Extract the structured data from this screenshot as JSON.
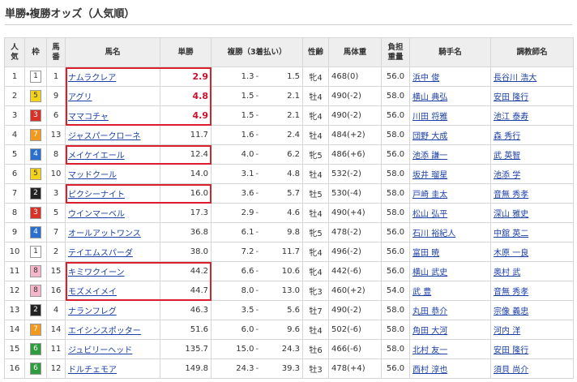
{
  "title": "単勝・複勝オッズ（人気順）",
  "table": {
    "headers": [
      "人気",
      "枠",
      "馬番",
      "馬名",
      "単勝",
      "複勝（3着払い）",
      "性齢",
      "馬体重",
      "負担重量",
      "騎手名",
      "調教師名"
    ],
    "place_separator": "-",
    "rows": [
      [
        "1",
        "1",
        "1",
        "ナムラクレア",
        "2.9",
        "1.3",
        "1.5",
        "牝4",
        "468(0)",
        "56.0",
        "浜中 俊",
        "長谷川 浩大"
      ],
      [
        "2",
        "5",
        "9",
        "アグリ",
        "4.8",
        "1.5",
        "2.1",
        "牡4",
        "490(-2)",
        "58.0",
        "横山 典弘",
        "安田 隆行"
      ],
      [
        "3",
        "3",
        "6",
        "ママコチャ",
        "4.9",
        "1.5",
        "2.1",
        "牝4",
        "490(-2)",
        "56.0",
        "川田 将雅",
        "池江 泰寿"
      ],
      [
        "4",
        "7",
        "13",
        "ジャスパークローネ",
        "11.7",
        "1.6",
        "2.4",
        "牡4",
        "484(+2)",
        "58.0",
        "団野 大成",
        "森 秀行"
      ],
      [
        "5",
        "4",
        "8",
        "メイケイエール",
        "12.4",
        "4.0",
        "6.2",
        "牝5",
        "486(+6)",
        "56.0",
        "池添 謙一",
        "武 英智"
      ],
      [
        "6",
        "5",
        "10",
        "マッドクール",
        "14.0",
        "3.1",
        "4.8",
        "牡4",
        "532(-2)",
        "58.0",
        "坂井 瑠星",
        "池添 学"
      ],
      [
        "7",
        "2",
        "3",
        "ピクシーナイト",
        "16.0",
        "3.6",
        "5.7",
        "牡5",
        "530(-4)",
        "58.0",
        "戸崎 圭太",
        "音無 秀孝"
      ],
      [
        "8",
        "3",
        "5",
        "ウインマーベル",
        "17.3",
        "2.9",
        "4.6",
        "牡4",
        "490(+4)",
        "58.0",
        "松山 弘平",
        "深山 雅史"
      ],
      [
        "9",
        "4",
        "7",
        "オールアットワンス",
        "36.8",
        "6.1",
        "9.8",
        "牝5",
        "478(-2)",
        "56.0",
        "石川 裕紀人",
        "中舘 英二"
      ],
      [
        "10",
        "1",
        "2",
        "テイエムスパーダ",
        "38.0",
        "7.2",
        "11.7",
        "牝4",
        "496(-2)",
        "56.0",
        "富田 暁",
        "木原 一良"
      ],
      [
        "11",
        "8",
        "15",
        "キミワクイーン",
        "44.2",
        "6.6",
        "10.6",
        "牝4",
        "442(-6)",
        "56.0",
        "横山 武史",
        "奥村 武"
      ],
      [
        "12",
        "8",
        "16",
        "モズメイメイ",
        "44.7",
        "8.0",
        "13.0",
        "牝3",
        "460(+2)",
        "54.0",
        "武 豊",
        "音無 秀孝"
      ],
      [
        "13",
        "2",
        "4",
        "ナランフレグ",
        "46.3",
        "3.5",
        "5.6",
        "牡7",
        "490(-2)",
        "58.0",
        "丸田 恭介",
        "宗像 義忠"
      ],
      [
        "14",
        "7",
        "14",
        "エイシンスポッター",
        "51.6",
        "6.0",
        "9.6",
        "牡4",
        "502(-6)",
        "58.0",
        "角田 大河",
        "河内 洋"
      ],
      [
        "15",
        "6",
        "11",
        "ジュビリーヘッド",
        "135.7",
        "15.0",
        "24.3",
        "牡6",
        "466(-6)",
        "58.0",
        "北村 友一",
        "安田 隆行"
      ],
      [
        "16",
        "6",
        "12",
        "ドルチェモア",
        "149.8",
        "24.3",
        "39.3",
        "牡3",
        "478(+4)",
        "56.0",
        "西村 淳也",
        "須貝 尚介"
      ]
    ]
  }
}
